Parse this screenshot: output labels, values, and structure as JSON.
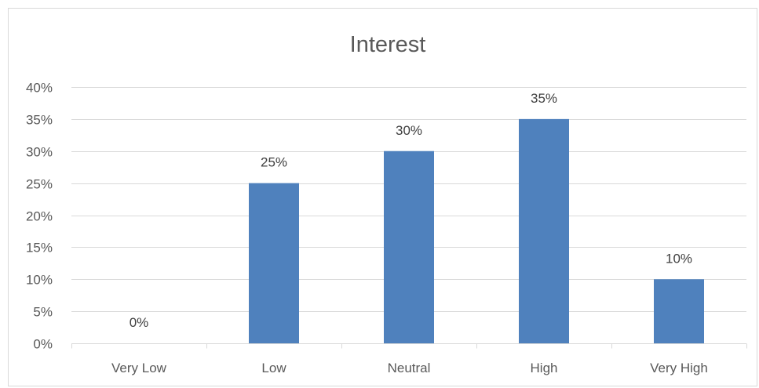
{
  "chart_data": {
    "type": "bar",
    "title": "Interest",
    "categories": [
      "Very Low",
      "Low",
      "Neutral",
      "High",
      "Very High"
    ],
    "values": [
      0,
      25,
      30,
      35,
      10
    ],
    "value_format": "percent",
    "data_labels": [
      "0%",
      "25%",
      "30%",
      "35%",
      "10%"
    ],
    "xlabel": "",
    "ylabel": "",
    "ylim": [
      0,
      40
    ],
    "yticks": [
      0,
      5,
      10,
      15,
      20,
      25,
      30,
      35,
      40
    ],
    "ytick_labels": [
      "0%",
      "5%",
      "10%",
      "15%",
      "20%",
      "25%",
      "30%",
      "35%",
      "40%"
    ],
    "grid": true,
    "legend": "none",
    "bar_color": "#4f81bd"
  }
}
